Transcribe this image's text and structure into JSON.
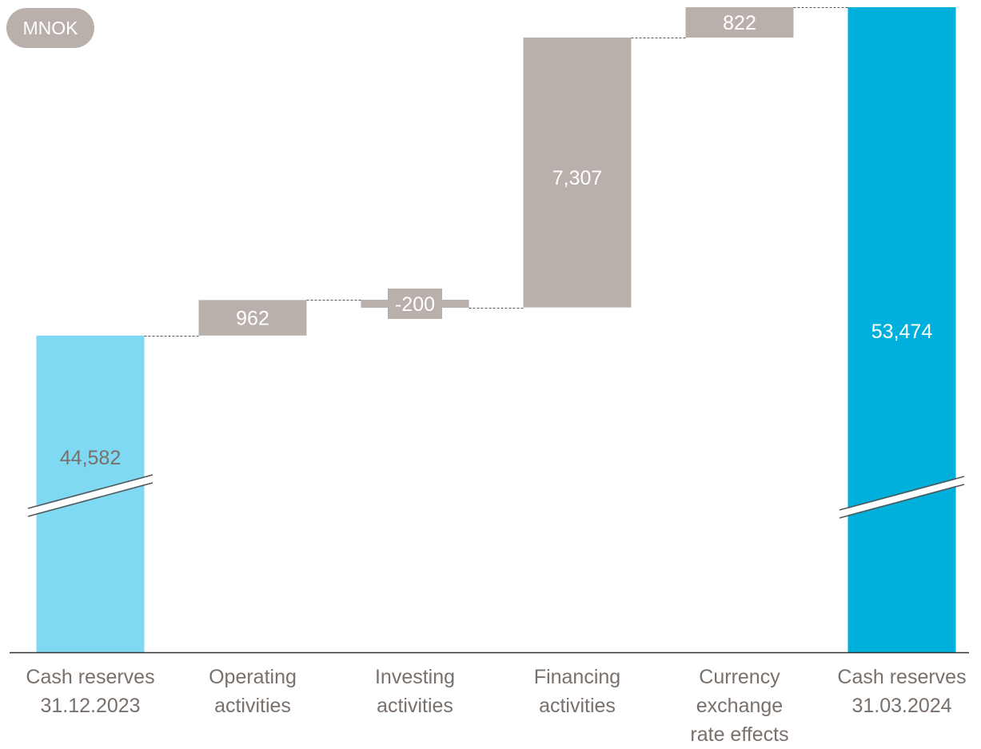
{
  "unit_badge": "MNOK",
  "chart_data": {
    "type": "waterfall",
    "categories": [
      [
        "Cash reserves",
        "31.12.2023"
      ],
      [
        "Operating",
        "activities"
      ],
      [
        "Investing",
        "activities"
      ],
      [
        "Financing",
        "activities"
      ],
      [
        "Currency",
        "exchange",
        "rate effects"
      ],
      [
        "Cash reserves",
        "31.03.2024"
      ]
    ],
    "values": [
      44582,
      962,
      -200,
      7307,
      822,
      53474
    ],
    "value_labels": [
      "44,582",
      "962",
      "-200",
      "7,307",
      "822",
      "53,474"
    ],
    "kinds": [
      "total",
      "delta",
      "delta",
      "delta",
      "delta",
      "total"
    ],
    "axis_break": true,
    "colors": {
      "start_total": "#7fd9f2",
      "end_total": "#00b0dc",
      "delta": "#b9b0ab",
      "start_label": "#7a706b",
      "delta_label": "#ffffff",
      "end_label": "#ffffff",
      "category_label": "#7a706b",
      "axis": "#333333",
      "connector": "#555555"
    }
  }
}
